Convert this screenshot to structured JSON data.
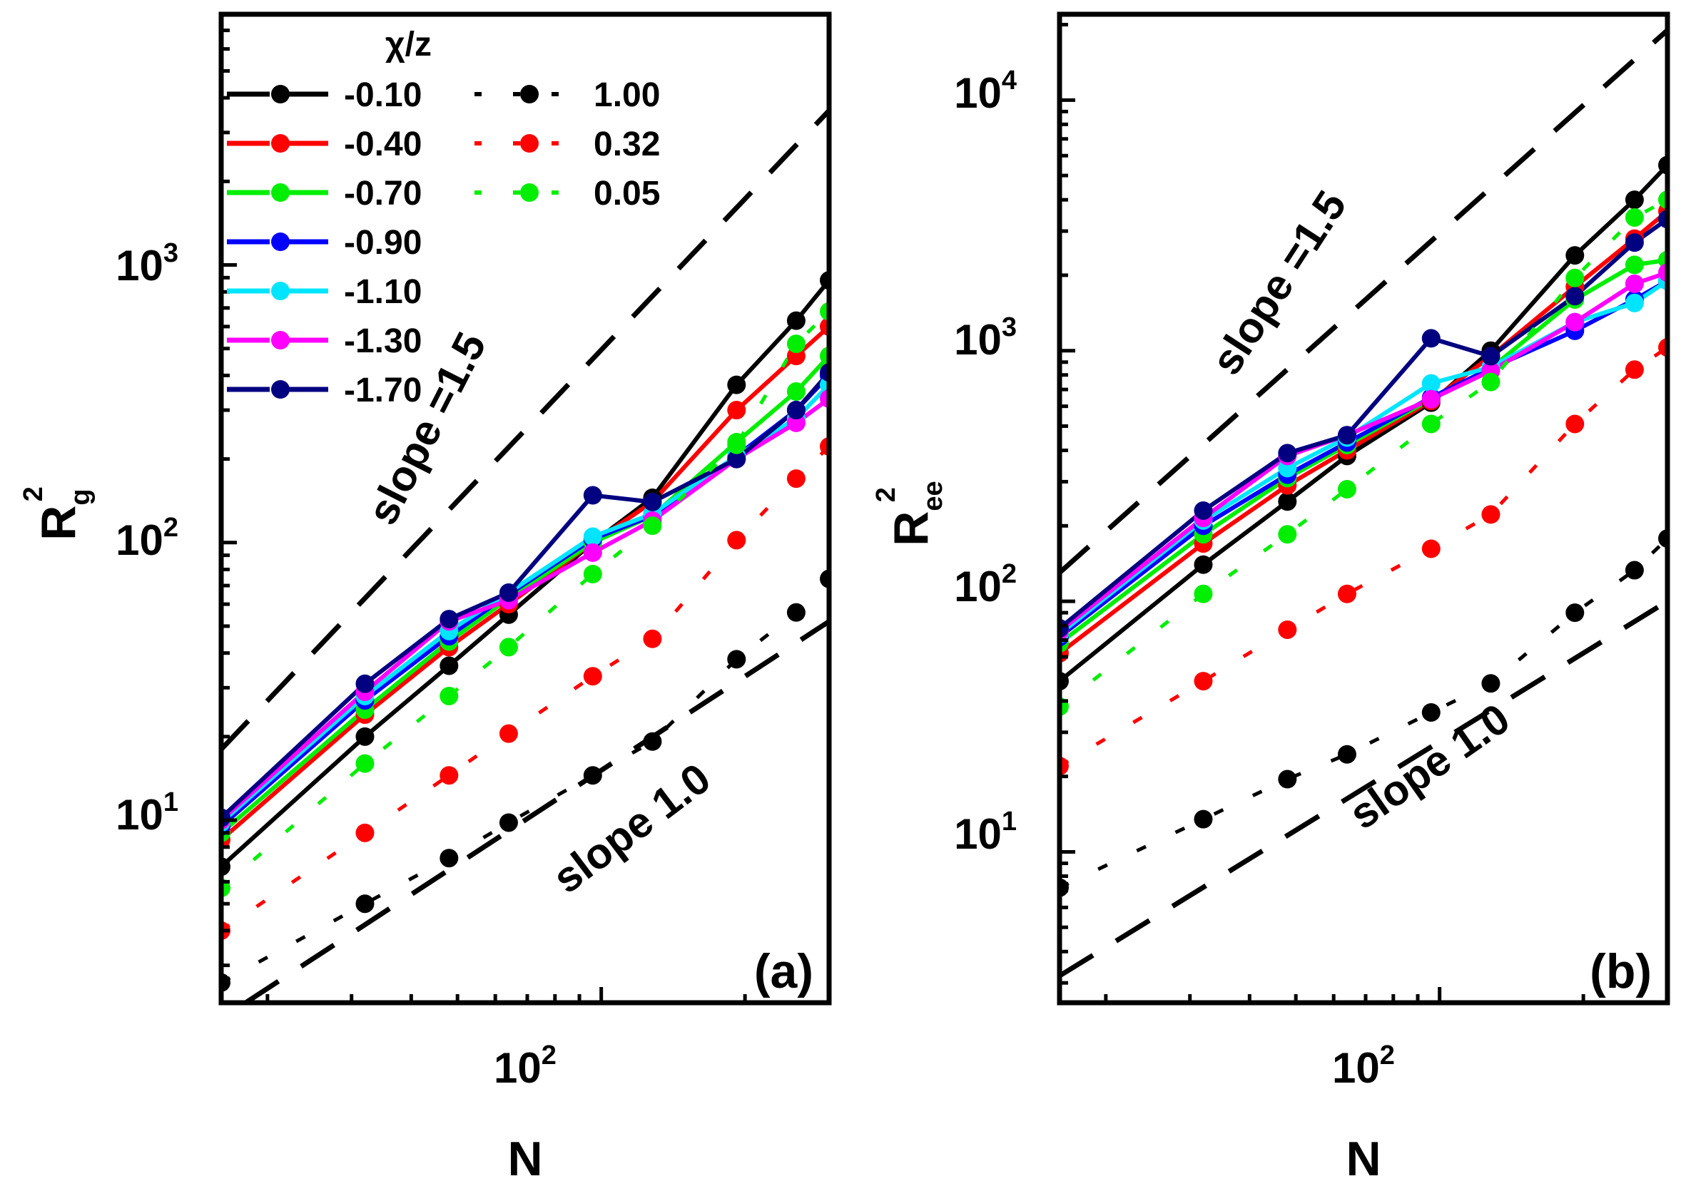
{
  "chart_data": [
    {
      "type": "line",
      "panel_label": "(a)",
      "scale": "log-log",
      "xlabel": "N",
      "ylabel_main": "R",
      "ylabel_sub": "g",
      "ylabel_sup": "2",
      "xlim": [
        16,
        300
      ],
      "ylim": [
        2.2,
        8000
      ],
      "x_ticks": [
        {
          "base": "10",
          "exp": "2",
          "value": 100
        }
      ],
      "y_ticks": [
        {
          "base": "10",
          "exp": "1",
          "value": 10
        },
        {
          "base": "10",
          "exp": "2",
          "value": 100
        },
        {
          "base": "10",
          "exp": "3",
          "value": 1000
        }
      ],
      "legend": {
        "title": "χ/z",
        "position": "top-left",
        "entries": [
          {
            "label": "-0.10",
            "color": "#000000",
            "style": "dashed"
          },
          {
            "label": "-0.40",
            "color": "#ff0000",
            "style": "dashed"
          },
          {
            "label": "-0.70",
            "color": "#00ee00",
            "style": "dashed"
          },
          {
            "label": "-0.90",
            "color": "#0000ff",
            "style": "dashed"
          },
          {
            "label": "-1.10",
            "color": "#00e5ff",
            "style": "dashed"
          },
          {
            "label": "-1.30",
            "color": "#ff00ff",
            "style": "dashed"
          },
          {
            "label": "-1.70",
            "color": "#000080",
            "style": "dashed"
          },
          {
            "label": "1.00",
            "color": "#000000",
            "style": "dotted"
          },
          {
            "label": "0.32",
            "color": "#ff0000",
            "style": "dotted"
          },
          {
            "label": "0.05",
            "color": "#00ee00",
            "style": "dotted"
          }
        ]
      },
      "x": [
        16,
        32,
        48,
        64,
        96,
        128,
        192,
        256,
        300
      ],
      "series": [
        {
          "name": "-0.10",
          "color": "#000000",
          "style": "solid",
          "values": [
            6.8,
            20,
            36,
            55,
            100,
            145,
            370,
            630,
            880
          ]
        },
        {
          "name": "-0.40",
          "color": "#ff0000",
          "style": "solid",
          "values": [
            8.5,
            24,
            42,
            60,
            100,
            140,
            300,
            470,
            600
          ]
        },
        {
          "name": "-0.70",
          "color": "#00ee00",
          "style": "solid",
          "values": [
            9.0,
            25,
            44,
            63,
            100,
            125,
            230,
            350,
            470
          ]
        },
        {
          "name": "-0.90",
          "color": "#0000ff",
          "style": "solid",
          "values": [
            9.5,
            27,
            46,
            65,
            103,
            125,
            205,
            300,
            400
          ]
        },
        {
          "name": "-1.10",
          "color": "#00e5ff",
          "style": "solid",
          "values": [
            9.8,
            28,
            48,
            66,
            105,
            127,
            205,
            280,
            370
          ]
        },
        {
          "name": "-1.30",
          "color": "#ff00ff",
          "style": "solid",
          "values": [
            10.0,
            29,
            52,
            62,
            92,
            120,
            200,
            270,
            330
          ]
        },
        {
          "name": "-1.70",
          "color": "#000080",
          "style": "solid",
          "values": [
            10.2,
            31,
            53,
            66,
            148,
            140,
            200,
            300,
            410
          ]
        },
        {
          "name": "1.00",
          "color": "#000000",
          "style": "dotted",
          "values": [
            2.6,
            5.0,
            7.3,
            9.8,
            14.5,
            19.2,
            38,
            56,
            74
          ]
        },
        {
          "name": "0.32",
          "color": "#ff0000",
          "style": "dotted",
          "values": [
            4.0,
            9.0,
            14.5,
            20.5,
            33,
            45,
            102,
            170,
            222
          ]
        },
        {
          "name": "0.05",
          "color": "#00ee00",
          "style": "dotted",
          "values": [
            5.7,
            16,
            28,
            42,
            77,
            115,
            225,
            520,
            680
          ]
        }
      ],
      "reference_lines": [
        {
          "label": "slope =1.5",
          "x": [
            16,
            300
          ],
          "y": [
            18,
            3600
          ]
        },
        {
          "label": "slope 1.0",
          "x": [
            18,
            300
          ],
          "y": [
            2.2,
            52
          ]
        }
      ]
    },
    {
      "type": "line",
      "panel_label": "(b)",
      "scale": "log-log",
      "xlabel": "N",
      "ylabel_main": "R",
      "ylabel_sub": "ee",
      "ylabel_sup": "2",
      "xlim": [
        16,
        300
      ],
      "ylim": [
        2.5,
        22000
      ],
      "x_ticks": [
        {
          "base": "10",
          "exp": "2",
          "value": 100
        }
      ],
      "y_ticks": [
        {
          "base": "10",
          "exp": "1",
          "value": 10
        },
        {
          "base": "10",
          "exp": "2",
          "value": 100
        },
        {
          "base": "10",
          "exp": "3",
          "value": 1000
        },
        {
          "base": "10",
          "exp": "4",
          "value": 10000
        }
      ],
      "x": [
        16,
        32,
        48,
        64,
        96,
        128,
        192,
        256,
        300
      ],
      "series": [
        {
          "name": "-0.10",
          "color": "#000000",
          "style": "solid",
          "values": [
            48,
            140,
            250,
            380,
            620,
            1000,
            2400,
            4000,
            5500
          ]
        },
        {
          "name": "-0.40",
          "color": "#ff0000",
          "style": "solid",
          "values": [
            62,
            170,
            290,
            400,
            630,
            950,
            1800,
            2800,
            3600
          ]
        },
        {
          "name": "-0.70",
          "color": "#00ee00",
          "style": "solid",
          "values": [
            68,
            185,
            310,
            420,
            640,
            850,
            1600,
            2200,
            2300
          ]
        },
        {
          "name": "-0.90",
          "color": "#0000ff",
          "style": "solid",
          "values": [
            72,
            200,
            320,
            430,
            650,
            850,
            1200,
            1600,
            1900
          ]
        },
        {
          "name": "-1.10",
          "color": "#00e5ff",
          "style": "solid",
          "values": [
            74,
            210,
            340,
            450,
            740,
            860,
            1300,
            1550,
            1900
          ]
        },
        {
          "name": "-1.30",
          "color": "#ff00ff",
          "style": "solid",
          "values": [
            76,
            215,
            380,
            460,
            640,
            830,
            1300,
            1850,
            2050
          ]
        },
        {
          "name": "-1.70",
          "color": "#000080",
          "style": "solid",
          "values": [
            78,
            230,
            390,
            460,
            1120,
            950,
            1650,
            2700,
            3350
          ]
        },
        {
          "name": "1.00",
          "color": "#000000",
          "style": "dotted",
          "values": [
            7.2,
            13.5,
            19.5,
            24.5,
            36,
            47,
            90,
            133,
            178
          ]
        },
        {
          "name": "0.32",
          "color": "#ff0000",
          "style": "dotted",
          "values": [
            22,
            48,
            77,
            107,
            162,
            222,
            510,
            840,
            1030
          ]
        },
        {
          "name": "0.05",
          "color": "#00ee00",
          "style": "dotted",
          "values": [
            38,
            107,
            185,
            280,
            510,
            750,
            1950,
            3400,
            4000
          ]
        }
      ],
      "reference_lines": [
        {
          "label": "slope =1.5",
          "x": [
            16,
            300
          ],
          "y": [
            130,
            19000
          ]
        },
        {
          "label": "slope 1.0",
          "x": [
            16,
            300
          ],
          "y": [
            3.2,
            100
          ]
        }
      ]
    }
  ]
}
